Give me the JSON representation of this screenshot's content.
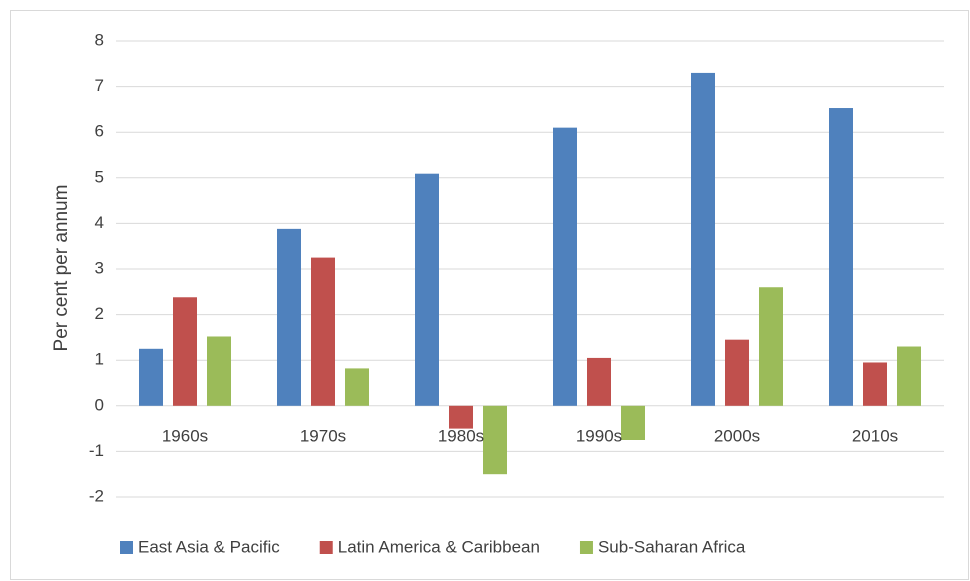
{
  "chart_data": {
    "type": "bar",
    "y_label": "Per cent per annum",
    "categories": [
      "1960s",
      "1970s",
      "1980s",
      "1990s",
      "2000s",
      "2010s"
    ],
    "series": [
      {
        "name": "East Asia & Pacific",
        "color": "#4f81bd",
        "values": [
          1.25,
          3.88,
          5.09,
          6.1,
          7.3,
          6.53
        ]
      },
      {
        "name": "Latin America & Caribbean",
        "color": "#c0504d",
        "values": [
          2.38,
          3.25,
          -0.5,
          1.05,
          1.45,
          0.95
        ]
      },
      {
        "name": "Sub-Saharan Africa",
        "color": "#9bbb59",
        "values": [
          1.52,
          0.82,
          -1.5,
          -0.75,
          2.6,
          1.3
        ]
      }
    ],
    "ylim": [
      -2,
      8
    ],
    "yticks": [
      -2,
      -1,
      0,
      1,
      2,
      3,
      4,
      5,
      6,
      7,
      8
    ],
    "grid": true,
    "legend": "bottom"
  }
}
